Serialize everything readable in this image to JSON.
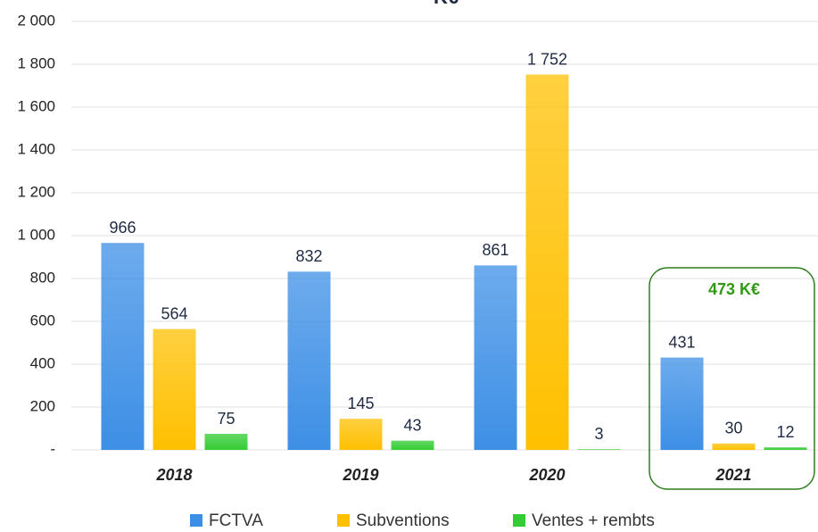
{
  "chart_data": {
    "type": "bar",
    "title": "K€",
    "categories": [
      "2018",
      "2019",
      "2020",
      "2021"
    ],
    "series": [
      {
        "name": "FCTVA",
        "color": "#3d8fe6",
        "values": [
          966,
          832,
          861,
          431
        ]
      },
      {
        "name": "Subventions",
        "color": "#ffc000",
        "values": [
          564,
          145,
          1752,
          30
        ]
      },
      {
        "name": "Ventes + rembts",
        "color": "#33cc33",
        "values": [
          75,
          43,
          3,
          12
        ]
      }
    ],
    "value_labels": [
      [
        "966",
        "832",
        "861",
        "431"
      ],
      [
        "564",
        "145",
        "1 752",
        "30"
      ],
      [
        "75",
        "43",
        "3",
        "12"
      ]
    ],
    "ylim": [
      0,
      2000
    ],
    "yticks": [
      {
        "value": 0,
        "label": "-"
      },
      200,
      400,
      600,
      800,
      {
        "value": 1000,
        "label": "1 000"
      },
      {
        "value": 1200,
        "label": "1 200"
      },
      {
        "value": 1400,
        "label": "1 400"
      },
      {
        "value": 1600,
        "label": "1 600"
      },
      {
        "value": 1800,
        "label": "1 800"
      },
      {
        "value": 2000,
        "label": "2 000"
      }
    ],
    "grid": true,
    "legend": "bottom",
    "annotation": "473 K€"
  }
}
